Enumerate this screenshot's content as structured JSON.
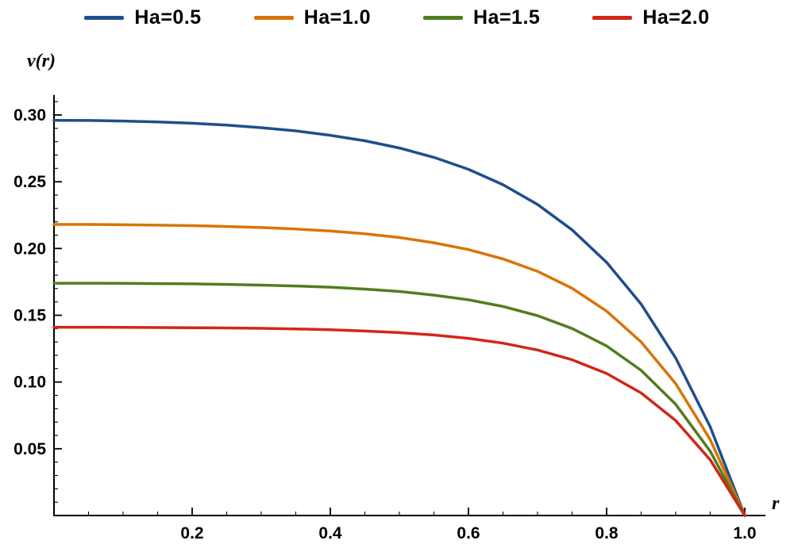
{
  "figure": {
    "y_axis_label": "v(r)",
    "x_axis_label": "r"
  },
  "legend": {
    "items": [
      {
        "label": "Ha=0.5",
        "color": "#1f4e8c"
      },
      {
        "label": "Ha=1.0",
        "color": "#d97408"
      },
      {
        "label": "Ha=1.5",
        "color": "#527d1e"
      },
      {
        "label": "Ha=2.0",
        "color": "#d12717"
      }
    ]
  },
  "chart_data": {
    "type": "line",
    "title": "",
    "xlabel": "r",
    "ylabel": "v(r)",
    "xlim": [
      0,
      1.03
    ],
    "ylim": [
      0,
      0.315
    ],
    "grid": false,
    "legend_position": "top",
    "x_ticks": [
      0.2,
      0.4,
      0.6,
      0.8,
      1.0
    ],
    "x_tick_labels": [
      "0.2",
      "0.4",
      "0.6",
      "0.8",
      "1.0"
    ],
    "y_ticks": [
      0.05,
      0.1,
      0.15,
      0.2,
      0.25,
      0.3
    ],
    "y_tick_labels": [
      "0.05",
      "0.10",
      "0.15",
      "0.20",
      "0.25",
      "0.30"
    ],
    "x_minor_step": 0.05,
    "y_minor_step": 0.01,
    "x": [
      0,
      0.05,
      0.1,
      0.15,
      0.2,
      0.25,
      0.3,
      0.35,
      0.4,
      0.45,
      0.5,
      0.55,
      0.6,
      0.65,
      0.7,
      0.75,
      0.8,
      0.85,
      0.9,
      0.95,
      1.0
    ],
    "series": [
      {
        "name": "Ha=0.5",
        "color": "#1f4e8c",
        "values": [
          0.296,
          0.2959,
          0.2955,
          0.2948,
          0.2938,
          0.2924,
          0.2905,
          0.2881,
          0.2848,
          0.2807,
          0.2753,
          0.2683,
          0.2593,
          0.2478,
          0.233,
          0.214,
          0.1896,
          0.1583,
          0.118,
          0.0664,
          0
        ]
      },
      {
        "name": "Ha=1.0",
        "color": "#d97408",
        "values": [
          0.218,
          0.218,
          0.2178,
          0.2175,
          0.2171,
          0.2165,
          0.2157,
          0.2146,
          0.2131,
          0.211,
          0.2082,
          0.2043,
          0.1992,
          0.1922,
          0.1829,
          0.1702,
          0.1531,
          0.13,
          0.0988,
          0.0568,
          0
        ]
      },
      {
        "name": "Ha=1.5",
        "color": "#527d1e",
        "values": [
          0.174,
          0.174,
          0.1739,
          0.1737,
          0.1735,
          0.1731,
          0.1726,
          0.1719,
          0.171,
          0.1696,
          0.1678,
          0.1651,
          0.1616,
          0.1566,
          0.1497,
          0.1401,
          0.127,
          0.1087,
          0.0833,
          0.0481,
          0
        ]
      },
      {
        "name": "Ha=2.0",
        "color": "#d12717",
        "values": [
          0.141,
          0.141,
          0.1409,
          0.1408,
          0.1407,
          0.1405,
          0.1402,
          0.1398,
          0.1391,
          0.1382,
          0.137,
          0.1352,
          0.1327,
          0.1291,
          0.124,
          0.1167,
          0.1064,
          0.0918,
          0.0711,
          0.0417,
          0
        ]
      }
    ]
  }
}
